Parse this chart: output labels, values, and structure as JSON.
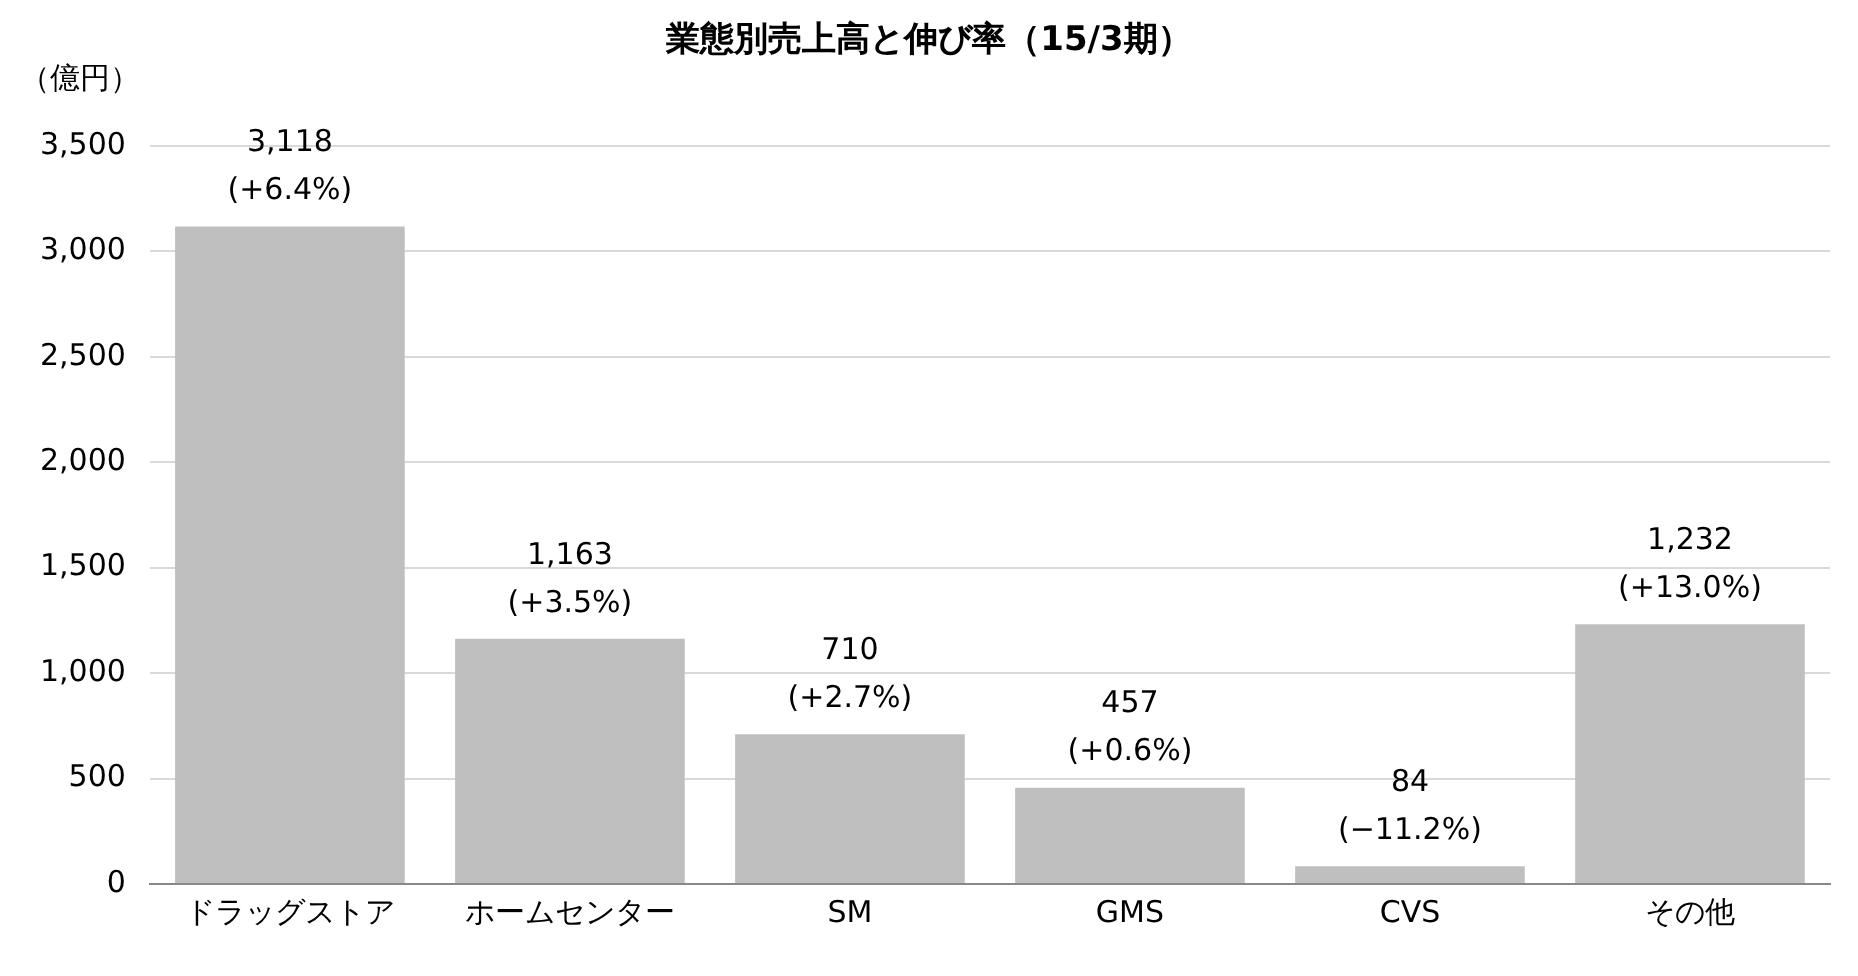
{
  "chart_data": {
    "type": "bar",
    "title": "業態別売上高と伸び率（15/3期）",
    "ylabel": "（億円）",
    "categories": [
      "ドラッグストア",
      "ホームセンター",
      "SM",
      "GMS",
      "CVS",
      "その他"
    ],
    "values": [
      3118,
      1163,
      710,
      457,
      84,
      1232
    ],
    "color": "#bfbfbf",
    "value_labels": [
      "3,118\n(+6.4%)",
      "1,163\n(+3.5%)",
      "710\n(+2.7%)",
      "457\n(+0.6%)",
      "84\n(−11.2%)",
      "1,232\n(+13.0%)"
    ],
    "ylim": [
      0,
      3500
    ],
    "yticks": [
      {
        "value": 0,
        "label": "0"
      },
      {
        "value": 500,
        "label": "500"
      },
      {
        "value": 1000,
        "label": "1,000"
      },
      {
        "value": 1500,
        "label": "1,500"
      },
      {
        "value": 2000,
        "label": "2,000"
      },
      {
        "value": 2500,
        "label": "2,500"
      },
      {
        "value": 3000,
        "label": "3,000"
      },
      {
        "value": 3500,
        "label": "3,500"
      }
    ],
    "grid": "y",
    "legend": false
  }
}
